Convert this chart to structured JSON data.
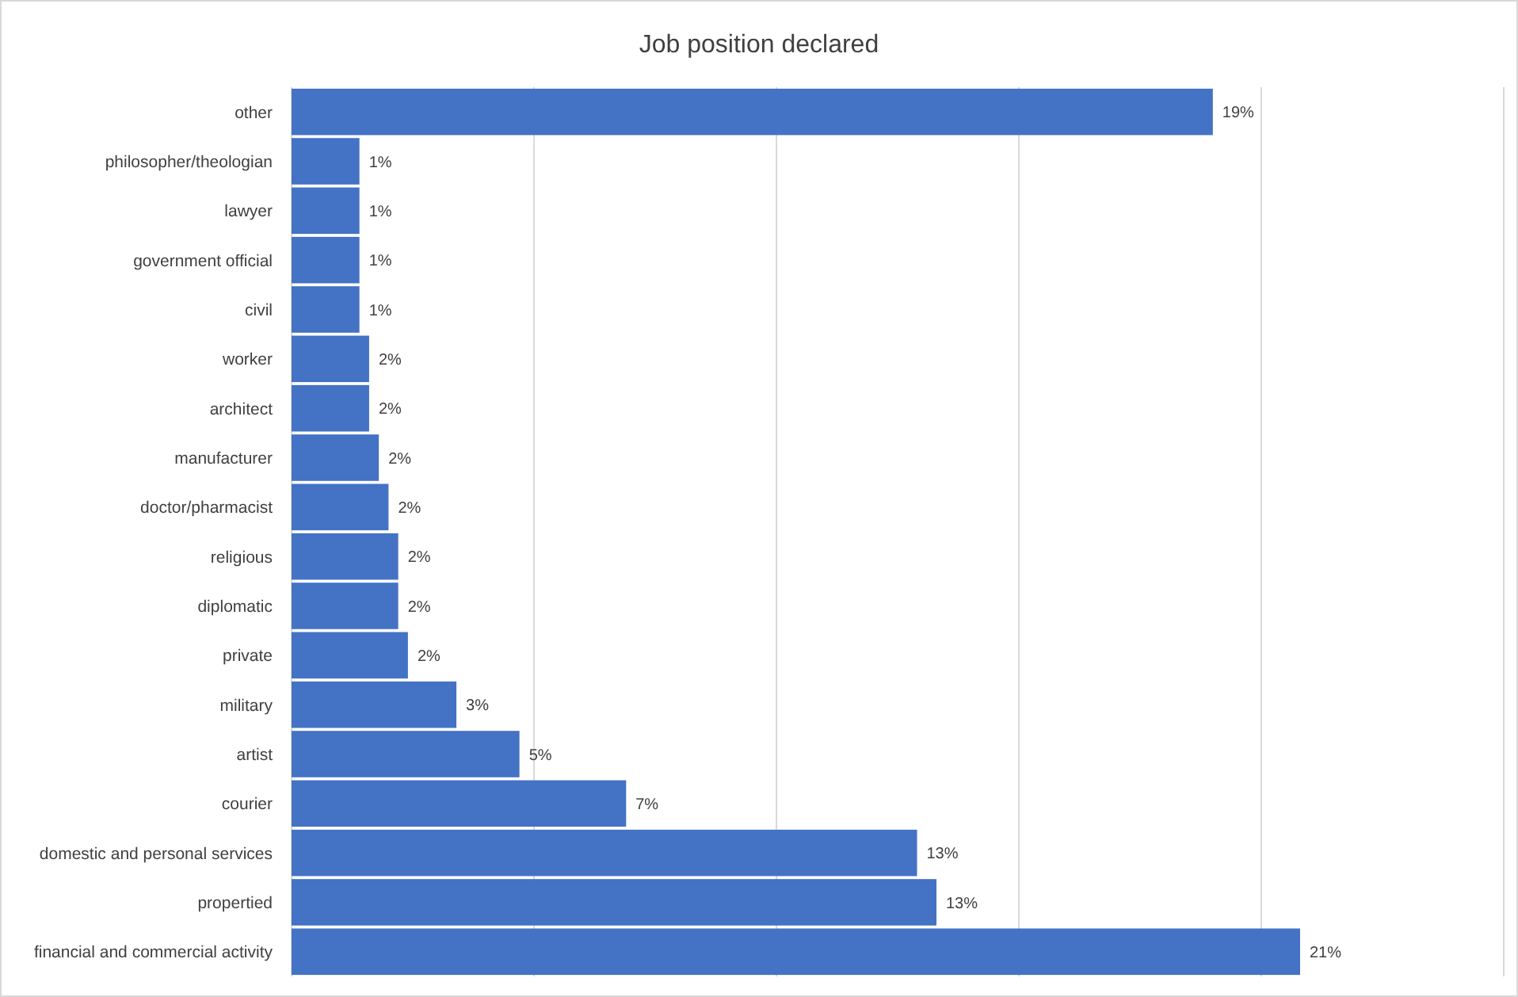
{
  "chart_data": {
    "type": "bar",
    "orientation": "horizontal",
    "title": "Job position declared",
    "categories": [
      "other",
      "philosopher/theologian",
      "lawyer",
      "government official",
      "civil",
      "worker",
      "architect",
      "manufacturer",
      "doctor/pharmacist",
      "religious",
      "diplomatic",
      "private",
      "military",
      "artist",
      "courier",
      "domestic and personal services",
      "propertied",
      "financial and commercial activity"
    ],
    "values": [
      19.0,
      1.4,
      1.4,
      1.4,
      1.4,
      1.6,
      1.6,
      1.8,
      2.0,
      2.2,
      2.2,
      2.4,
      3.4,
      4.7,
      6.9,
      12.9,
      13.3,
      20.8
    ],
    "value_labels": [
      "19%",
      "1%",
      "1%",
      "1%",
      "1%",
      "2%",
      "2%",
      "2%",
      "2%",
      "2%",
      "2%",
      "2%",
      "3%",
      "5%",
      "7%",
      "13%",
      "13%",
      "21%"
    ],
    "color": "#4472c4",
    "xlim": [
      0,
      25
    ],
    "xticks": [
      {
        "value": 0,
        "label": null
      },
      {
        "value": 5,
        "label": null
      },
      {
        "value": 10,
        "label": null
      },
      {
        "value": 15,
        "label": null
      },
      {
        "value": 20,
        "label": null
      },
      {
        "value": 25,
        "label": null
      }
    ],
    "grid": "x",
    "tick_labels": "y"
  }
}
